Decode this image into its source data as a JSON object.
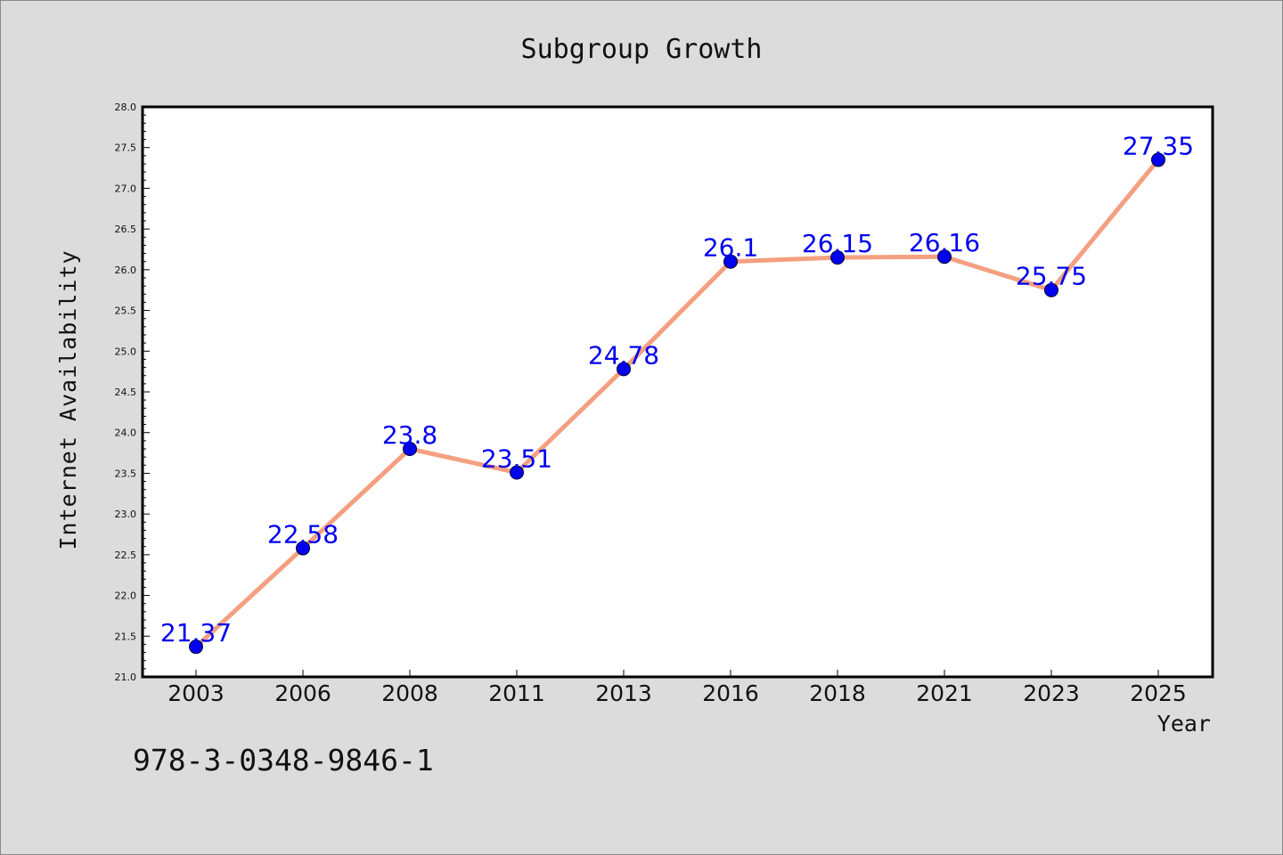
{
  "chart_data": {
    "type": "line",
    "title": "Subgroup Growth",
    "xlabel": "Year",
    "ylabel": "Internet Availability",
    "categories": [
      "2003",
      "2006",
      "2008",
      "2011",
      "2013",
      "2016",
      "2018",
      "2021",
      "2023",
      "2025"
    ],
    "values": [
      21.37,
      22.58,
      23.8,
      23.51,
      24.78,
      26.1,
      26.15,
      26.16,
      25.75,
      27.35
    ],
    "data_labels": [
      "21.37",
      "22.58",
      "23.8",
      "23.51",
      "24.78",
      "26.1",
      "26.15",
      "26.16",
      "25.75",
      "27.35"
    ],
    "ylim": [
      21.0,
      28.0
    ],
    "yticks": [
      "21.0",
      "21.5",
      "22.0",
      "22.5",
      "23.0",
      "23.5",
      "24.0",
      "24.5",
      "25.0",
      "25.5",
      "26.0",
      "26.5",
      "27.0",
      "27.5",
      "28.0"
    ],
    "grid": false,
    "line_color": "#f4a080",
    "marker_color": "#0000ee",
    "label_color": "#0000ee"
  },
  "annotation": "978-3-0348-9846-1"
}
